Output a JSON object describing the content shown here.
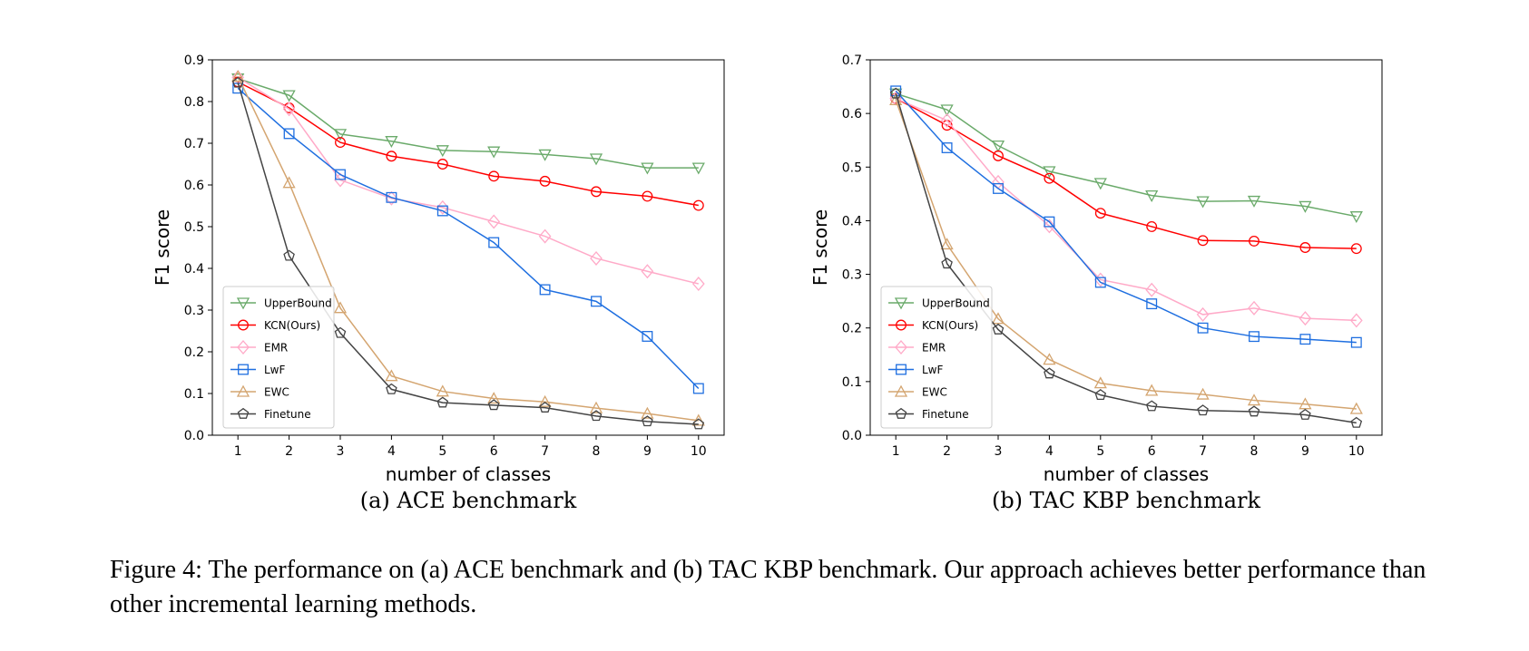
{
  "caption": "Figure 4: The performance on (a) ACE benchmark and (b) TAC KBP benchmark. Our approach achieves better performance than other incremental learning methods.",
  "chart_data": [
    {
      "type": "line",
      "subcaption": "(a)  ACE benchmark",
      "xlabel": "number of classes",
      "ylabel": "F1 score",
      "x": [
        1,
        2,
        3,
        4,
        5,
        6,
        7,
        8,
        9,
        10
      ],
      "xlim": [
        0.5,
        10.5
      ],
      "ylim": [
        0,
        0.9
      ],
      "yticks": [
        0.0,
        0.1,
        0.2,
        0.3,
        0.4,
        0.5,
        0.6,
        0.7,
        0.8,
        0.9
      ],
      "legend_position": "lower-left",
      "grid": false,
      "series": [
        {
          "name": "UpperBound",
          "color": "#6aaa6a",
          "marker": "triangle-down",
          "values": [
            0.855,
            0.815,
            0.722,
            0.705,
            0.683,
            0.68,
            0.673,
            0.663,
            0.641,
            0.641
          ]
        },
        {
          "name": "KCN(Ours)",
          "color": "#ff0000",
          "marker": "circle",
          "values": [
            0.847,
            0.785,
            0.702,
            0.669,
            0.65,
            0.621,
            0.609,
            0.584,
            0.573,
            0.551
          ]
        },
        {
          "name": "EMR",
          "color": "#ffaac8",
          "marker": "diamond",
          "values": [
            0.858,
            0.782,
            0.612,
            0.568,
            0.546,
            0.512,
            0.477,
            0.424,
            0.393,
            0.363
          ]
        },
        {
          "name": "LwF",
          "color": "#1f6fe0",
          "marker": "square",
          "values": [
            0.832,
            0.723,
            0.625,
            0.57,
            0.538,
            0.462,
            0.349,
            0.321,
            0.237,
            0.112
          ]
        },
        {
          "name": "EWC",
          "color": "#d4a570",
          "marker": "triangle-up",
          "values": [
            0.86,
            0.605,
            0.305,
            0.142,
            0.105,
            0.088,
            0.08,
            0.065,
            0.052,
            0.035
          ]
        },
        {
          "name": "Finetune",
          "color": "#444444",
          "marker": "pentagon",
          "values": [
            0.845,
            0.43,
            0.245,
            0.11,
            0.078,
            0.072,
            0.066,
            0.046,
            0.033,
            0.026
          ]
        }
      ]
    },
    {
      "type": "line",
      "subcaption": "(b)  TAC KBP benchmark",
      "xlabel": "number of classes",
      "ylabel": "F1 score",
      "x": [
        1,
        2,
        3,
        4,
        5,
        6,
        7,
        8,
        9,
        10
      ],
      "xlim": [
        0.5,
        10.5
      ],
      "ylim": [
        0,
        0.7
      ],
      "yticks": [
        0.0,
        0.1,
        0.2,
        0.3,
        0.4,
        0.5,
        0.6,
        0.7
      ],
      "legend_position": "lower-left",
      "grid": false,
      "series": [
        {
          "name": "UpperBound",
          "color": "#6aaa6a",
          "marker": "triangle-down",
          "values": [
            0.637,
            0.607,
            0.54,
            0.492,
            0.47,
            0.447,
            0.436,
            0.437,
            0.427,
            0.408
          ]
        },
        {
          "name": "KCN(Ours)",
          "color": "#ff0000",
          "marker": "circle",
          "values": [
            0.628,
            0.578,
            0.521,
            0.479,
            0.414,
            0.389,
            0.363,
            0.362,
            0.35,
            0.348
          ]
        },
        {
          "name": "EMR",
          "color": "#ffaac8",
          "marker": "diamond",
          "values": [
            0.628,
            0.587,
            0.472,
            0.39,
            0.29,
            0.271,
            0.225,
            0.237,
            0.218,
            0.214
          ]
        },
        {
          "name": "LwF",
          "color": "#1f6fe0",
          "marker": "square",
          "values": [
            0.642,
            0.536,
            0.46,
            0.398,
            0.285,
            0.245,
            0.2,
            0.184,
            0.179,
            0.173
          ]
        },
        {
          "name": "EWC",
          "color": "#d4a570",
          "marker": "triangle-up",
          "values": [
            0.625,
            0.356,
            0.217,
            0.141,
            0.097,
            0.083,
            0.076,
            0.065,
            0.058,
            0.049
          ]
        },
        {
          "name": "Finetune",
          "color": "#444444",
          "marker": "pentagon",
          "values": [
            0.637,
            0.32,
            0.197,
            0.115,
            0.075,
            0.054,
            0.046,
            0.044,
            0.038,
            0.023
          ]
        }
      ]
    }
  ]
}
